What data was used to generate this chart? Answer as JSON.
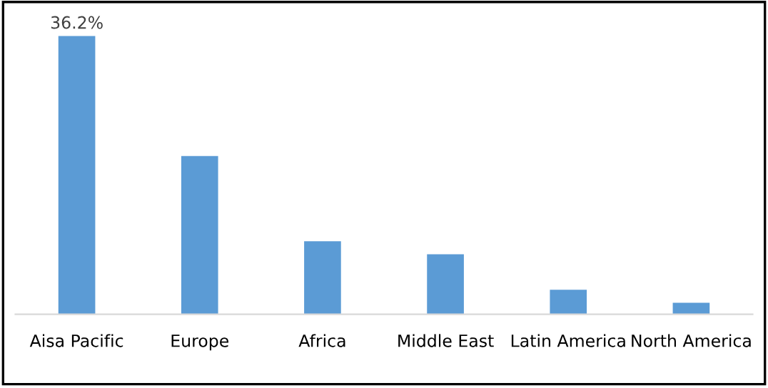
{
  "chart_data": {
    "type": "bar",
    "categories": [
      "Aisa Pacific",
      "Europe",
      "Africa",
      "Middle East",
      "Latin America",
      "North America"
    ],
    "values": [
      36.2,
      20.6,
      9.5,
      7.8,
      3.2,
      1.5
    ],
    "value_labels": [
      "36.2%",
      null,
      null,
      null,
      null,
      null
    ],
    "color": "#5b9bd5",
    "grid": false,
    "legend": false
  }
}
